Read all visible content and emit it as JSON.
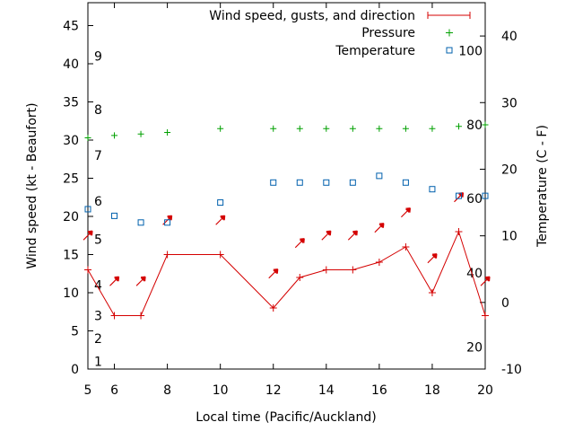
{
  "chart_data": {
    "type": "line",
    "xlabel": "Local time (Pacific/Auckland)",
    "ylabel": "Wind speed (kt - Beaufort)",
    "y2label": "Temperature (C - F)",
    "xlim": [
      5,
      20
    ],
    "ylim": [
      0,
      48
    ],
    "y2lim": [
      -10,
      45
    ],
    "xticks": [
      6,
      8,
      10,
      12,
      14,
      16,
      18,
      20
    ],
    "yticks": [
      0,
      5,
      10,
      15,
      20,
      25,
      30,
      35,
      40,
      45
    ],
    "y2ticks": [
      -10,
      0,
      10,
      20,
      30,
      40
    ],
    "beaufort": [
      {
        "label": "1",
        "kt": 1
      },
      {
        "label": "2",
        "kt": 4
      },
      {
        "label": "3",
        "kt": 7
      },
      {
        "label": "4",
        "kt": 11
      },
      {
        "label": "5",
        "kt": 17
      },
      {
        "label": "6",
        "kt": 22
      },
      {
        "label": "7",
        "kt": 28
      },
      {
        "label": "8",
        "kt": 34
      },
      {
        "label": "9",
        "kt": 41
      }
    ],
    "fahrenheit": [
      {
        "label": "20",
        "c": -6.7
      },
      {
        "label": "40",
        "c": 4.4
      },
      {
        "label": "60",
        "c": 15.6
      },
      {
        "label": "80",
        "c": 26.7
      },
      {
        "label": "100",
        "c": 37.8
      }
    ],
    "legend": {
      "wind": "Wind speed, gusts, and direction",
      "pressure": "Pressure",
      "temperature": "Temperature"
    },
    "series": {
      "wind": {
        "x": [
          5,
          6,
          7,
          8,
          10,
          12,
          13,
          14,
          15,
          16,
          17,
          18,
          19,
          20
        ],
        "y": [
          13,
          7,
          7,
          15,
          15,
          8,
          12,
          13,
          13,
          14,
          16,
          10,
          18,
          7
        ]
      },
      "gusts": [
        {
          "x": 5,
          "kt": 17.5,
          "dir": "NE"
        },
        {
          "x": 6,
          "kt": 11.5,
          "dir": "NE"
        },
        {
          "x": 7,
          "kt": 11.5,
          "dir": "NE"
        },
        {
          "x": 8,
          "kt": 19.5,
          "dir": "NE"
        },
        {
          "x": 10,
          "kt": 19.5,
          "dir": "NE"
        },
        {
          "x": 12,
          "kt": 12.5,
          "dir": "NE"
        },
        {
          "x": 13,
          "kt": 16.5,
          "dir": "NE"
        },
        {
          "x": 14,
          "kt": 17.5,
          "dir": "NE"
        },
        {
          "x": 15,
          "kt": 17.5,
          "dir": "NE"
        },
        {
          "x": 16,
          "kt": 18.5,
          "dir": "NE"
        },
        {
          "x": 17,
          "kt": 20.5,
          "dir": "NE"
        },
        {
          "x": 18,
          "kt": 14.5,
          "dir": "NE"
        },
        {
          "x": 19,
          "kt": 22.5,
          "dir": "NE"
        },
        {
          "x": 20,
          "kt": 11.5,
          "dir": "NE"
        }
      ],
      "pressure": {
        "x": [
          5,
          6,
          7,
          8,
          10,
          12,
          13,
          14,
          15,
          16,
          17,
          18,
          19,
          20
        ],
        "y": [
          30.3,
          30.6,
          30.8,
          31.0,
          31.5,
          31.5,
          31.5,
          31.5,
          31.5,
          31.5,
          31.5,
          31.5,
          31.8,
          32.0
        ]
      },
      "temperature": {
        "x": [
          5,
          6,
          7,
          8,
          10,
          12,
          13,
          14,
          15,
          16,
          17,
          18,
          19,
          20
        ],
        "y": [
          14,
          13,
          12,
          12,
          15,
          18,
          18,
          18,
          18,
          19,
          18,
          17,
          16,
          16
        ]
      }
    }
  }
}
